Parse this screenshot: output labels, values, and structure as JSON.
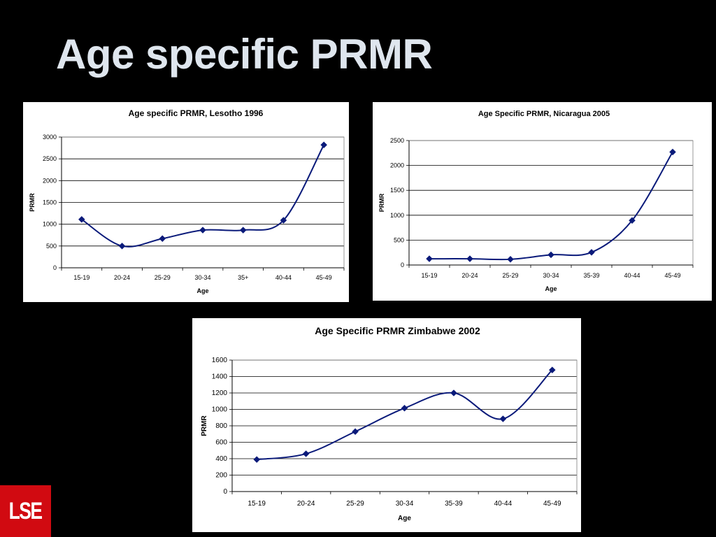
{
  "slide": {
    "title": "Age specific PRMR",
    "logo_text": "LSE"
  },
  "colors": {
    "background": "#000000",
    "title": "#dfe6ee",
    "series": "#0a1a7a",
    "logo": "#d10a11"
  },
  "chart_data": [
    {
      "type": "line",
      "title": "Age specific PRMR, Lesotho 1996",
      "xlabel": "Age",
      "ylabel": "PRMR",
      "categories": [
        "15-19",
        "20-24",
        "25-29",
        "30-34",
        "35+",
        "40-44",
        "45-49"
      ],
      "values": [
        1110,
        500,
        670,
        865,
        865,
        1090,
        2820
      ],
      "ylim": [
        0,
        3000
      ],
      "yticks": [
        0,
        500,
        1000,
        1500,
        2000,
        2500,
        3000
      ],
      "grid": true,
      "marker": "diamond"
    },
    {
      "type": "line",
      "title": "Age Specific PRMR, Nicaragua 2005",
      "xlabel": "Age",
      "ylabel": "PRMR",
      "categories": [
        "15-19",
        "20-24",
        "25-29",
        "30-34",
        "35-39",
        "40-44",
        "45-49"
      ],
      "values": [
        125,
        125,
        115,
        205,
        255,
        895,
        2270
      ],
      "ylim": [
        0,
        2500
      ],
      "yticks": [
        0,
        500,
        1000,
        1500,
        2000,
        2500
      ],
      "grid": true,
      "marker": "diamond"
    },
    {
      "type": "line",
      "title": "Age Specific PRMR Zimbabwe 2002",
      "xlabel": "Age",
      "ylabel": "PRMR",
      "categories": [
        "15-19",
        "20-24",
        "25-29",
        "30-34",
        "35-39",
        "40-44",
        "45-49"
      ],
      "values": [
        390,
        460,
        730,
        1015,
        1200,
        885,
        1480
      ],
      "ylim": [
        0,
        1600
      ],
      "yticks": [
        0,
        200,
        400,
        600,
        800,
        1000,
        1200,
        1400,
        1600
      ],
      "grid": true,
      "marker": "diamond"
    }
  ]
}
